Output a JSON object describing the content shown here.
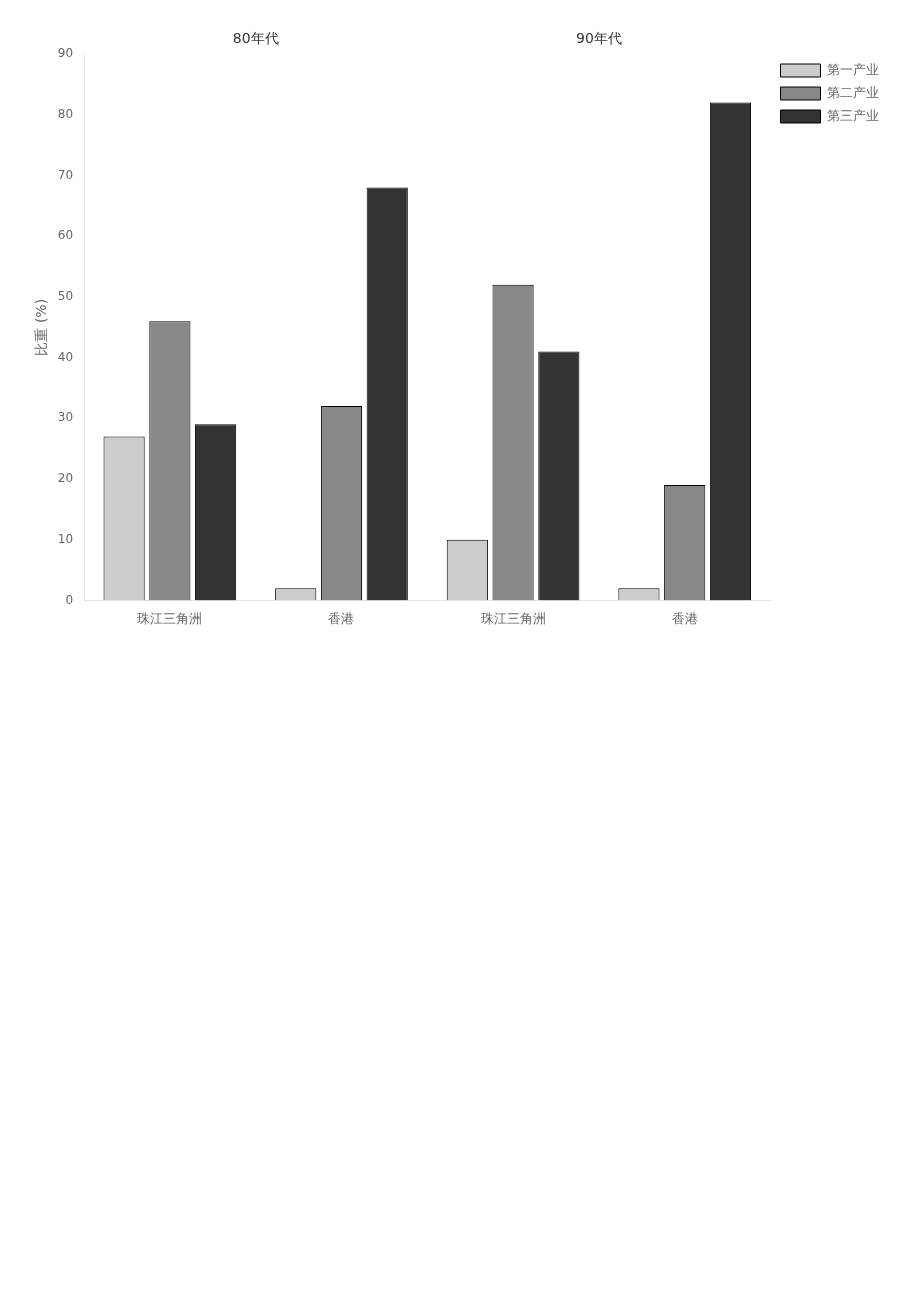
{
  "chart_data": {
    "type": "bar",
    "categories": [
      "珠江三角洲",
      "香港",
      "珠江三角洲",
      "香港"
    ],
    "series": [
      {
        "name": "第一产业",
        "color": "#cccccc",
        "values": [
          27,
          2,
          10,
          2
        ]
      },
      {
        "name": "第二产业",
        "color": "#888888",
        "values": [
          46,
          32,
          52,
          19
        ]
      },
      {
        "name": "第三产业",
        "color": "#333333",
        "values": [
          29,
          68,
          41,
          82
        ]
      }
    ],
    "ylabel": "比重 (%)",
    "ylim": [
      0,
      90
    ],
    "yticks": [
      0,
      10,
      20,
      30,
      40,
      50,
      60,
      70,
      80,
      90
    ],
    "annotations": [
      "80年代",
      "90年代"
    ],
    "legend": "upper right",
    "grid": false
  }
}
